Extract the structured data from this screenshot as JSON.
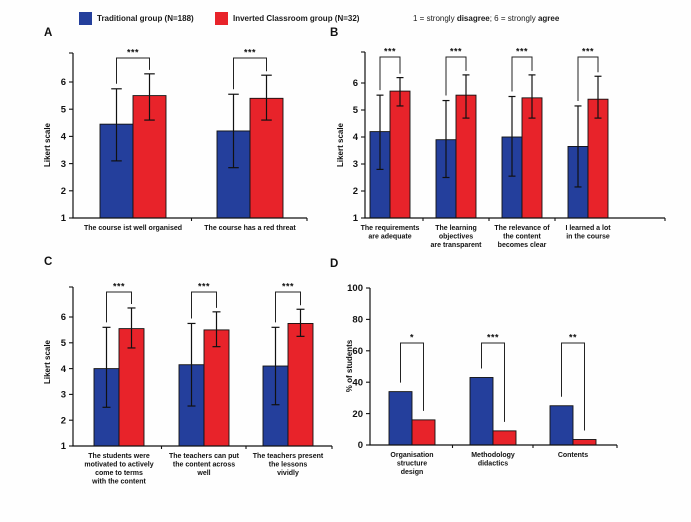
{
  "legend": {
    "items": [
      {
        "id": "traditional",
        "label": "Traditional group (N=188)",
        "color": "#243f9c"
      },
      {
        "id": "inverted",
        "label": "Inverted Classroom group (N=32)",
        "color": "#e8232a"
      }
    ],
    "scale_note": {
      "prefix": "1 = strongly ",
      "bold1": "disagree",
      "middle": "; 6 = strongly ",
      "bold2": "agree"
    }
  },
  "chart_data": [
    {
      "panel": "A",
      "type": "bar",
      "ylabel": "Likert scale",
      "ylim": [
        1,
        6
      ],
      "yticks": [
        1,
        2,
        3,
        4,
        5,
        6
      ],
      "grid": false,
      "categories": [
        [
          "The course ist well organised"
        ],
        [
          "The course has a red threat"
        ]
      ],
      "series": [
        {
          "name": "Traditional group (N=188)",
          "color": "#243f9c",
          "values": [
            4.45,
            4.2
          ],
          "err_low": [
            3.1,
            2.85
          ],
          "err_high": [
            5.75,
            5.55
          ]
        },
        {
          "name": "Inverted Classroom group (N=32)",
          "color": "#e8232a",
          "values": [
            5.5,
            5.4
          ],
          "err_low": [
            4.6,
            4.6
          ],
          "err_high": [
            6.3,
            6.25
          ]
        }
      ],
      "significance": [
        "***",
        "***"
      ]
    },
    {
      "panel": "B",
      "type": "bar",
      "ylabel": "Likert scale",
      "ylim": [
        1,
        6
      ],
      "yticks": [
        1,
        2,
        3,
        4,
        5,
        6
      ],
      "grid": false,
      "categories": [
        [
          "The requirements",
          "are adequate"
        ],
        [
          "The learning",
          "objectives",
          "are transparent"
        ],
        [
          "The relevance of",
          "the content",
          "becomes clear"
        ],
        [
          "I learned a lot",
          "in the course"
        ]
      ],
      "series": [
        {
          "name": "Traditional group (N=188)",
          "color": "#243f9c",
          "values": [
            4.2,
            3.9,
            4.0,
            3.65
          ],
          "err_low": [
            2.8,
            2.5,
            2.55,
            2.15
          ],
          "err_high": [
            5.55,
            5.35,
            5.5,
            5.15
          ]
        },
        {
          "name": "Inverted Classroom group (N=32)",
          "color": "#e8232a",
          "values": [
            5.7,
            5.55,
            5.45,
            5.4
          ],
          "err_low": [
            5.15,
            4.7,
            4.7,
            4.7
          ],
          "err_high": [
            6.2,
            6.3,
            6.3,
            6.25
          ]
        }
      ],
      "significance": [
        "***",
        "***",
        "***",
        "***"
      ]
    },
    {
      "panel": "C",
      "type": "bar",
      "ylabel": "Likert scale",
      "ylim": [
        1,
        6
      ],
      "yticks": [
        1,
        2,
        3,
        4,
        5,
        6
      ],
      "grid": false,
      "categories": [
        [
          "The students were",
          "motivated to actively",
          "come to terms",
          "with the content"
        ],
        [
          "The teachers can put",
          "the content across",
          "well"
        ],
        [
          "The teachers present",
          "the lessons",
          "vividly"
        ]
      ],
      "series": [
        {
          "name": "Traditional group (N=188)",
          "color": "#243f9c",
          "values": [
            4.0,
            4.15,
            4.1
          ],
          "err_low": [
            2.5,
            2.55,
            2.6
          ],
          "err_high": [
            5.6,
            5.75,
            5.6
          ]
        },
        {
          "name": "Inverted Classroom group (N=32)",
          "color": "#e8232a",
          "values": [
            5.55,
            5.5,
            5.75
          ],
          "err_low": [
            4.8,
            4.85,
            5.25
          ],
          "err_high": [
            6.35,
            6.2,
            6.3
          ]
        }
      ],
      "significance": [
        "***",
        "***",
        "***"
      ]
    },
    {
      "panel": "D",
      "type": "bar",
      "ylabel": "% of students",
      "ylim": [
        0,
        100
      ],
      "yticks": [
        0,
        20,
        40,
        60,
        80,
        100
      ],
      "grid": false,
      "categories": [
        [
          "Organisation",
          "structure",
          "design"
        ],
        [
          "Methodology",
          "didactics"
        ],
        [
          "Contents"
        ]
      ],
      "series": [
        {
          "name": "Traditional group (N=188)",
          "color": "#243f9c",
          "values": [
            34,
            43,
            25
          ]
        },
        {
          "name": "Inverted Classroom group (N=32)",
          "color": "#e8232a",
          "values": [
            16,
            9,
            3.5
          ]
        }
      ],
      "significance": [
        "*",
        "***",
        "**"
      ]
    }
  ]
}
